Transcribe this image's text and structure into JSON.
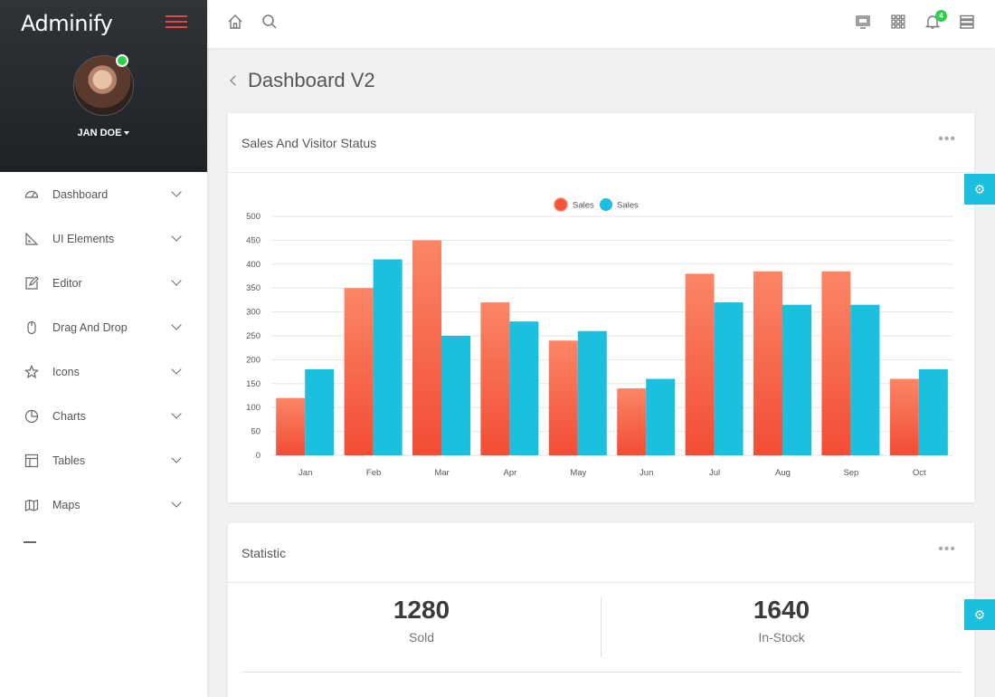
{
  "app": {
    "brand": "Adminify"
  },
  "user": {
    "name": "JAN DOE",
    "status": "online"
  },
  "sidebar": {
    "items": [
      {
        "label": "Dashboard",
        "icon": "dashboard-icon"
      },
      {
        "label": "UI Elements",
        "icon": "ruler-icon"
      },
      {
        "label": "Editor",
        "icon": "edit-icon"
      },
      {
        "label": "Drag And Drop",
        "icon": "mouse-icon"
      },
      {
        "label": "Icons",
        "icon": "star-icon"
      },
      {
        "label": "Charts",
        "icon": "pie-chart-icon"
      },
      {
        "label": "Tables",
        "icon": "table-icon"
      },
      {
        "label": "Maps",
        "icon": "map-icon"
      }
    ]
  },
  "topbar": {
    "notifications_count": "4"
  },
  "page": {
    "title": "Dashboard V2"
  },
  "sales_card": {
    "title": "Sales And Visitor Status"
  },
  "stat_card": {
    "title": "Statistic",
    "stats": [
      {
        "value": "1280",
        "label": "Sold"
      },
      {
        "value": "1640",
        "label": "In-Stock"
      }
    ]
  },
  "colors": {
    "accent": "#1ac0dd",
    "series1": "#f5533b",
    "series2": "#1ac0dd",
    "online": "#2bd04b"
  },
  "chart_data": {
    "type": "bar",
    "categories": [
      "Jan",
      "Feb",
      "Mar",
      "Apr",
      "May",
      "Jun",
      "Jul",
      "Aug",
      "Sep",
      "Oct"
    ],
    "series": [
      {
        "name": "Sales",
        "values": [
          120,
          350,
          450,
          320,
          240,
          140,
          380,
          385,
          385,
          160
        ]
      },
      {
        "name": "Sales",
        "values": [
          180,
          410,
          250,
          280,
          260,
          160,
          320,
          315,
          315,
          180
        ]
      }
    ],
    "yticks": [
      0,
      50,
      100,
      150,
      200,
      250,
      300,
      350,
      400,
      450,
      500
    ],
    "ylim": [
      0,
      500
    ],
    "legend": "top-center",
    "grid": true
  }
}
